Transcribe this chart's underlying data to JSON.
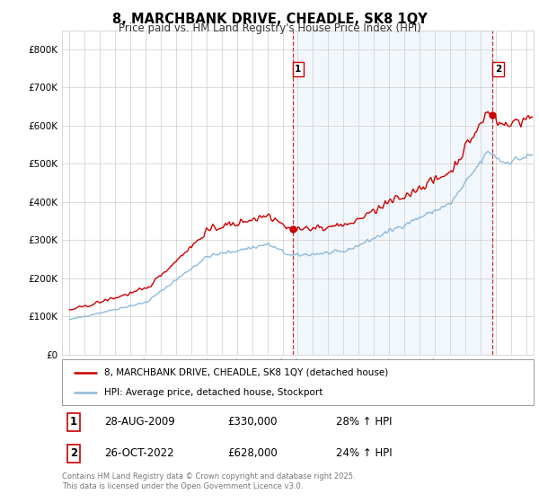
{
  "title": "8, MARCHBANK DRIVE, CHEADLE, SK8 1QY",
  "subtitle": "Price paid vs. HM Land Registry's House Price Index (HPI)",
  "sale1_date": "28-AUG-2009",
  "sale1_price": 330000,
  "sale1_pct": "28%",
  "sale2_date": "26-OCT-2022",
  "sale2_price": 628000,
  "sale2_pct": "24%",
  "legend_line1": "8, MARCHBANK DRIVE, CHEADLE, SK8 1QY (detached house)",
  "legend_line2": "HPI: Average price, detached house, Stockport",
  "footnote": "Contains HM Land Registry data © Crown copyright and database right 2025.\nThis data is licensed under the Open Government Licence v3.0.",
  "line_color_red": "#cc0000",
  "line_color_blue": "#7aafd4",
  "vline_color": "#cc0000",
  "grid_color": "#cccccc",
  "bg_color": "#ffffff",
  "shade_color": "#ddeeff",
  "sale1_x": 2009.66,
  "sale2_x": 2022.81,
  "ylim_max": 850000,
  "xlim_min": 1994.5,
  "xlim_max": 2025.5
}
